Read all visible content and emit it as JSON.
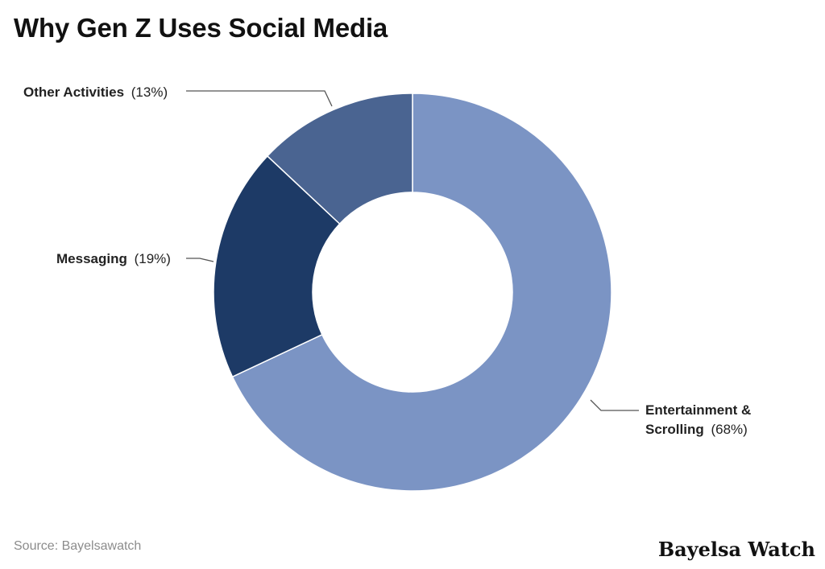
{
  "chart_title": "Why Gen Z Uses Social Media",
  "source": "Source: Bayelsawatch",
  "brand": "Bayelsa Watch",
  "chart_data": {
    "type": "pie",
    "title": "Why Gen Z Uses Social Media",
    "donut": true,
    "slices": [
      {
        "name": "Entertainment & Scrolling",
        "value": 68,
        "label_bold": "Entertainment &",
        "label_bold2": "Scrolling",
        "label_pct": "(68%)",
        "color": "#7b94c4"
      },
      {
        "name": "Messaging",
        "value": 19,
        "label_bold": "Messaging",
        "label_pct": "(19%)",
        "color": "#1d3a66"
      },
      {
        "name": "Other Activities",
        "value": 13,
        "label_bold": "Other Activities",
        "label_pct": "(13%)",
        "color": "#4a6491"
      }
    ]
  }
}
